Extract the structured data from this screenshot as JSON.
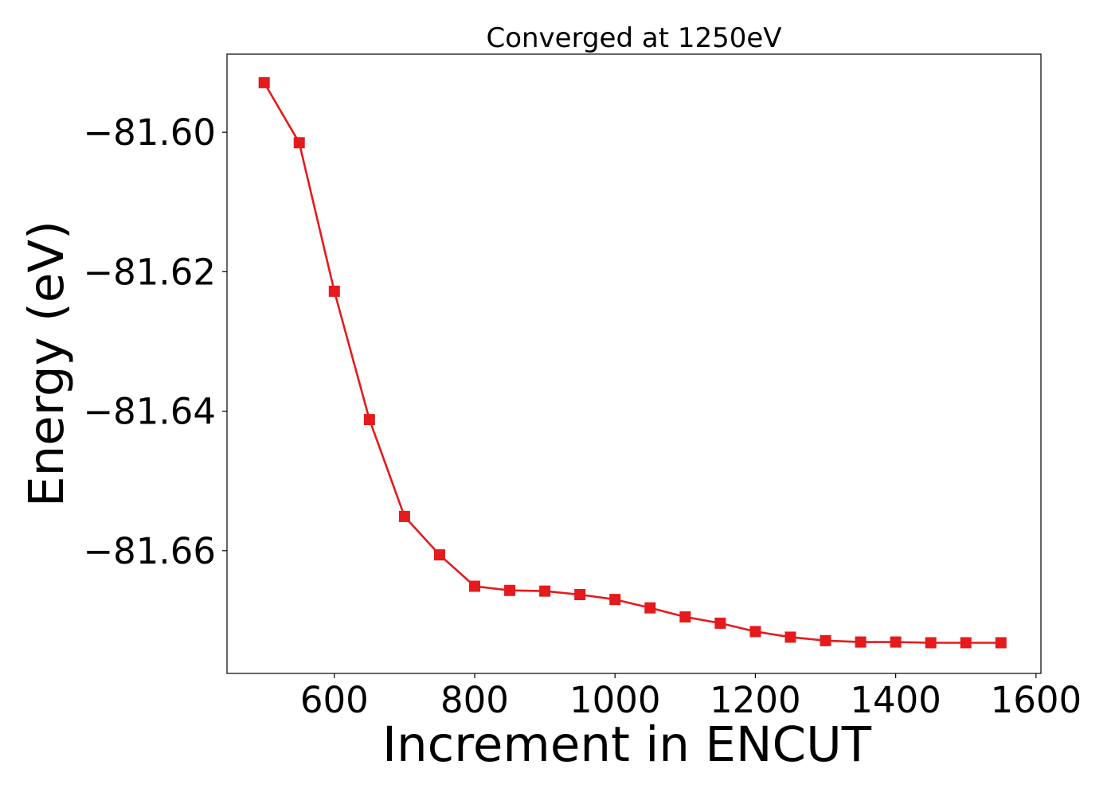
{
  "chart_data": {
    "type": "line",
    "title": "Converged at 1250eV",
    "xlabel": "Increment in ENCUT",
    "ylabel": "Energy (eV)",
    "xlim": [
      447,
      1607
    ],
    "ylim": [
      -81.6776,
      -81.5888
    ],
    "xticks": [
      600,
      800,
      1000,
      1200,
      1400,
      1600
    ],
    "yticks": [
      -81.6,
      -81.62,
      -81.64,
      -81.66
    ],
    "ytick_labels": [
      "−81.60",
      "−81.62",
      "−81.64",
      "−81.66"
    ],
    "grid": false,
    "marker": "square",
    "series": [
      {
        "color": "#e41a1c",
        "x": [
          500,
          550,
          600,
          650,
          700,
          750,
          800,
          850,
          900,
          950,
          1000,
          1050,
          1100,
          1150,
          1200,
          1250,
          1300,
          1350,
          1400,
          1450,
          1500,
          1550
        ],
        "y": [
          -81.5929,
          -81.6015,
          -81.6228,
          -81.6412,
          -81.6551,
          -81.6606,
          -81.6651,
          -81.6657,
          -81.6658,
          -81.6663,
          -81.667,
          -81.6682,
          -81.6695,
          -81.6704,
          -81.6716,
          -81.6724,
          -81.6729,
          -81.6731,
          -81.6731,
          -81.6732,
          -81.6732,
          -81.6732
        ]
      }
    ]
  }
}
